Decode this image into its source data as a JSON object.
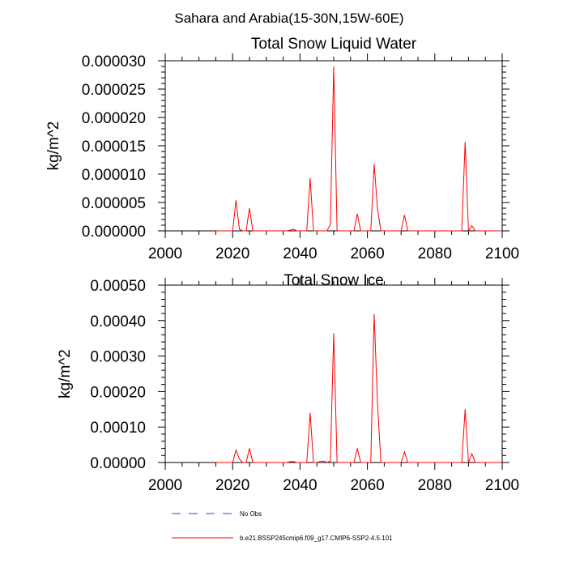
{
  "figure": {
    "suptitle": "Sahara and Arabia(15-30N,15W-60E)"
  },
  "colors": {
    "model_line": "#ff0000",
    "obs_line": "#3c3ccf",
    "axis": "#000000"
  },
  "legend": {
    "obs_label": "No Obs",
    "model_label": "b.e21.BSSP245cmip6.f09_g17.CMIP6-SSP2-4.5.101"
  },
  "chart_data": [
    {
      "type": "line",
      "title": "Total Snow Liquid Water",
      "xlabel": "",
      "ylabel": "kg/m^2",
      "xlim": [
        2000,
        2100
      ],
      "ylim": [
        0,
        3e-05
      ],
      "xticks": [
        "2000",
        "2020",
        "2040",
        "2060",
        "2080",
        "2100"
      ],
      "yticks": [
        "0.000000",
        "0.000005",
        "0.000010",
        "0.000015",
        "0.000020",
        "0.000025",
        "0.000030"
      ],
      "series": [
        {
          "name": "b.e21.BSSP245cmip6.f09_g17.CMIP6-SSP2-4.5.101",
          "x": [
            2015,
            2019,
            2020,
            2021,
            2022,
            2023,
            2024,
            2025,
            2026,
            2027,
            2036,
            2037,
            2038,
            2039,
            2042,
            2043,
            2044,
            2048,
            2049,
            2050,
            2051,
            2056,
            2057,
            2058,
            2061,
            2062,
            2063,
            2064,
            2070,
            2071,
            2072,
            2088,
            2089,
            2090,
            2091,
            2092,
            2100
          ],
          "y": [
            0,
            0,
            0,
            5.4e-06,
            3e-07,
            0,
            0,
            4e-06,
            0,
            0,
            0,
            1e-07,
            3e-07,
            0,
            0,
            9.3e-06,
            0,
            0,
            1.1e-06,
            2.9e-05,
            0,
            0,
            3e-06,
            0,
            0,
            1.18e-05,
            3.8e-06,
            0,
            0,
            2.8e-06,
            0,
            0,
            1.57e-05,
            0,
            9e-07,
            0,
            0
          ]
        }
      ]
    },
    {
      "type": "line",
      "title": "Total Snow Ice",
      "xlabel": "",
      "ylabel": "kg/m^2",
      "xlim": [
        2000,
        2100
      ],
      "ylim": [
        0,
        0.0005
      ],
      "xticks": [
        "2000",
        "2020",
        "2040",
        "2060",
        "2080",
        "2100"
      ],
      "yticks": [
        "0.00000",
        "0.00010",
        "0.00020",
        "0.00030",
        "0.00040",
        "0.00050"
      ],
      "series": [
        {
          "name": "b.e21.BSSP245cmip6.f09_g17.CMIP6-SSP2-4.5.101",
          "x": [
            2015,
            2020,
            2021,
            2022,
            2023,
            2024,
            2025,
            2026,
            2027,
            2036,
            2037,
            2038,
            2039,
            2042,
            2043,
            2044,
            2045,
            2046,
            2047,
            2048,
            2049,
            2050,
            2051,
            2056,
            2057,
            2058,
            2061,
            2062,
            2063,
            2064,
            2070,
            2071,
            2072,
            2088,
            2089,
            2090,
            2091,
            2092,
            2100
          ],
          "y": [
            0,
            0,
            3.5e-05,
            1e-05,
            0,
            0,
            4e-05,
            0,
            0,
            0,
            2e-06,
            3e-06,
            0,
            0,
            0.00014,
            0,
            0,
            3e-06,
            4e-06,
            0,
            4e-06,
            0.000365,
            0,
            0,
            4e-05,
            0,
            0,
            0.000418,
            0.000165,
            0,
            0,
            3e-05,
            0,
            0,
            0.00015,
            0,
            2.5e-05,
            0,
            0
          ]
        }
      ]
    }
  ]
}
